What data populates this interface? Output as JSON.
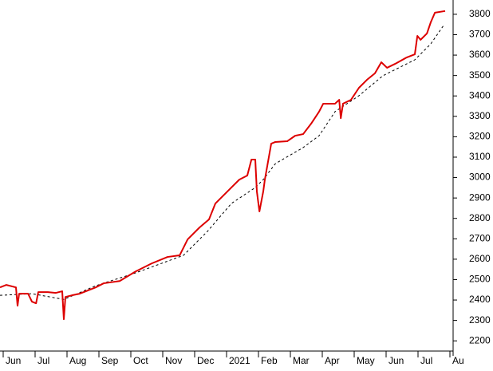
{
  "chart_data": {
    "type": "line",
    "xlim": [
      -0.1,
      14.1
    ],
    "xticks": [
      {
        "value": 0,
        "label": "Jun"
      },
      {
        "value": 1,
        "label": "Jul"
      },
      {
        "value": 2,
        "label": "Aug"
      },
      {
        "value": 3,
        "label": "Sep"
      },
      {
        "value": 4,
        "label": "Oct"
      },
      {
        "value": 5,
        "label": "Nov"
      },
      {
        "value": 6,
        "label": "Dec"
      },
      {
        "value": 7,
        "label": "2021"
      },
      {
        "value": 8,
        "label": "Feb"
      },
      {
        "value": 9,
        "label": "Mar"
      },
      {
        "value": 10,
        "label": "Apr"
      },
      {
        "value": 11,
        "label": "May"
      },
      {
        "value": 12,
        "label": "Jun"
      },
      {
        "value": 13,
        "label": "Jul"
      },
      {
        "value": 14,
        "label": "Au"
      }
    ],
    "ylim": [
      2150,
      3870
    ],
    "yticks": [
      2200,
      2300,
      2400,
      2500,
      2600,
      2700,
      2800,
      2900,
      3000,
      3100,
      3200,
      3300,
      3400,
      3500,
      3600,
      3700,
      3800
    ],
    "series": [
      {
        "color": "#dd0000",
        "dashed": false,
        "x": [
          -0.1,
          0.1,
          0.4,
          0.45,
          0.5,
          0.78,
          0.9,
          1.03,
          1.1,
          1.4,
          1.65,
          1.85,
          1.9,
          1.95,
          2.15,
          2.4,
          2.9,
          3.15,
          3.65,
          4.15,
          4.65,
          5.15,
          5.53,
          5.78,
          6.15,
          6.45,
          6.65,
          6.9,
          7.15,
          7.4,
          7.65,
          7.78,
          7.9,
          7.95,
          8.03,
          8.15,
          8.2,
          8.4,
          8.52,
          8.9,
          9.15,
          9.4,
          9.65,
          9.9,
          10.03,
          10.15,
          10.4,
          10.53,
          10.58,
          10.65,
          10.9,
          11.15,
          11.4,
          11.65,
          11.85,
          12.03,
          12.28,
          12.65,
          12.9,
          12.98,
          13.08,
          13.28,
          13.4,
          13.53,
          13.85
        ],
        "values": [
          2462,
          2474,
          2462,
          2372,
          2431,
          2431,
          2392,
          2384,
          2439,
          2439,
          2435,
          2443,
          2306,
          2415,
          2423,
          2431,
          2462,
          2482,
          2493,
          2540,
          2579,
          2611,
          2619,
          2697,
          2755,
          2795,
          2873,
          2912,
          2951,
          2990,
          3010,
          3088,
          3088,
          2932,
          2834,
          2932,
          2990,
          3166,
          3174,
          3178,
          3205,
          3213,
          3264,
          3323,
          3362,
          3362,
          3362,
          3381,
          3291,
          3362,
          3381,
          3440,
          3479,
          3511,
          3565,
          3538,
          3557,
          3589,
          3604,
          3694,
          3675,
          3706,
          3761,
          3808,
          3816
        ]
      },
      {
        "color": "#000000",
        "dashed": true,
        "x": [
          -0.1,
          0.9,
          1.9,
          2.9,
          4.15,
          5.65,
          6.4,
          7.15,
          7.9,
          8.15,
          8.53,
          9.4,
          9.9,
          10.4,
          11.15,
          11.9,
          12.9,
          13.4,
          13.8
        ],
        "values": [
          2423,
          2431,
          2403,
          2470,
          2533,
          2619,
          2736,
          2873,
          2951,
          2990,
          3068,
          3147,
          3205,
          3323,
          3401,
          3499,
          3577,
          3655,
          3745
        ]
      }
    ]
  }
}
